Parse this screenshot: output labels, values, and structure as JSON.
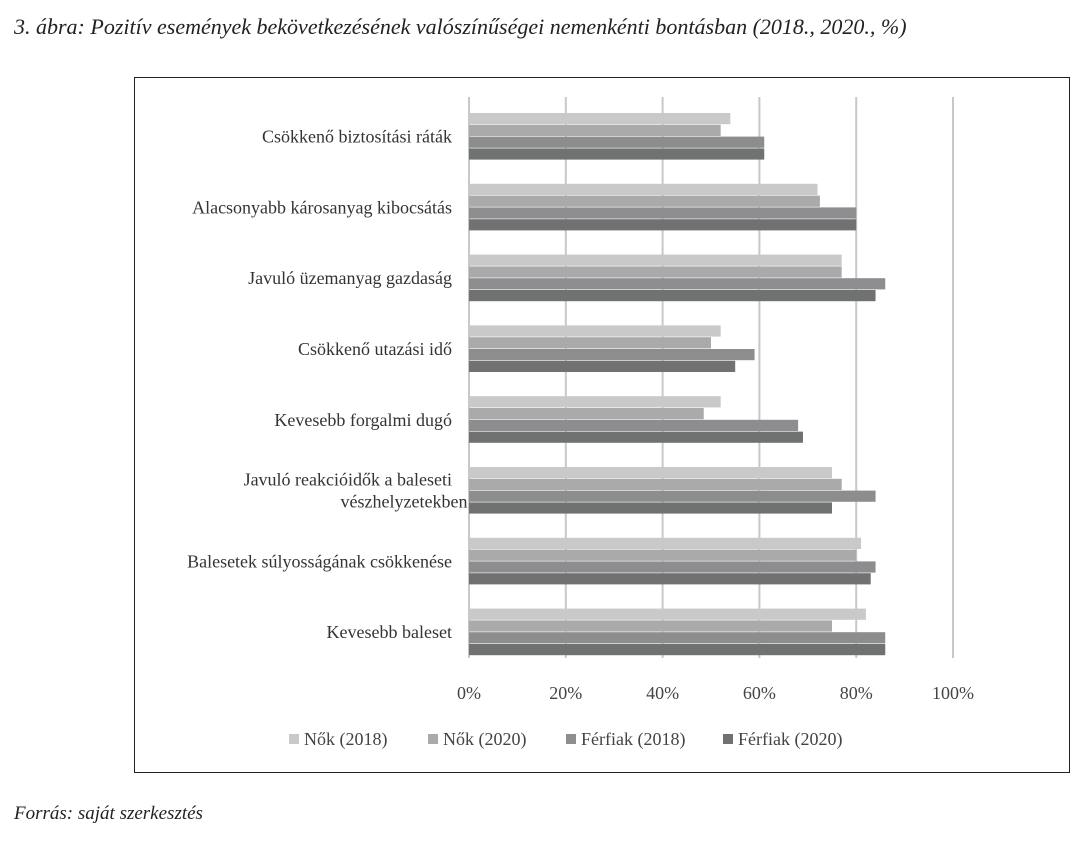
{
  "title": "3. ábra: Pozitív események bekövetkezésének valószínűségei nemenkénti bontásban (2018., 2020., %)",
  "source": "Forrás: saját szerkesztés",
  "chart_data": {
    "type": "bar",
    "orientation": "horizontal",
    "categories": [
      "Csökkenő biztosítási ráták",
      "Alacsonyabb károsanyag kibocsátás",
      "Javuló üzemanyag gazdaság",
      "Csökkenő utazási idő",
      "Kevesebb forgalmi dugó",
      "Javuló reakcióidők a baleseti vészhelyzetekben",
      "Balesetek súlyosságának csökkenése",
      "Kevesebb baleset"
    ],
    "series": [
      {
        "name": "Nők (2018)",
        "color": "#c9c9c9",
        "values": [
          54,
          72,
          77,
          52,
          52,
          75,
          81,
          82
        ]
      },
      {
        "name": "Nők (2020)",
        "color": "#aaaaaa",
        "values": [
          52,
          72.5,
          77,
          50,
          48.5,
          77,
          80,
          75
        ]
      },
      {
        "name": "Férfiak (2018)",
        "color": "#8d8d8f",
        "values": [
          61,
          80,
          86,
          59,
          68,
          84,
          84,
          86
        ]
      },
      {
        "name": "Férfiak (2020)",
        "color": "#707272",
        "values": [
          61,
          80,
          84,
          55,
          69,
          75,
          83,
          86
        ]
      }
    ],
    "xlim": [
      0,
      100
    ],
    "xticks": [
      "0%",
      "20%",
      "40%",
      "60%",
      "80%",
      "100%"
    ],
    "grid": true,
    "legend": "bottom"
  }
}
